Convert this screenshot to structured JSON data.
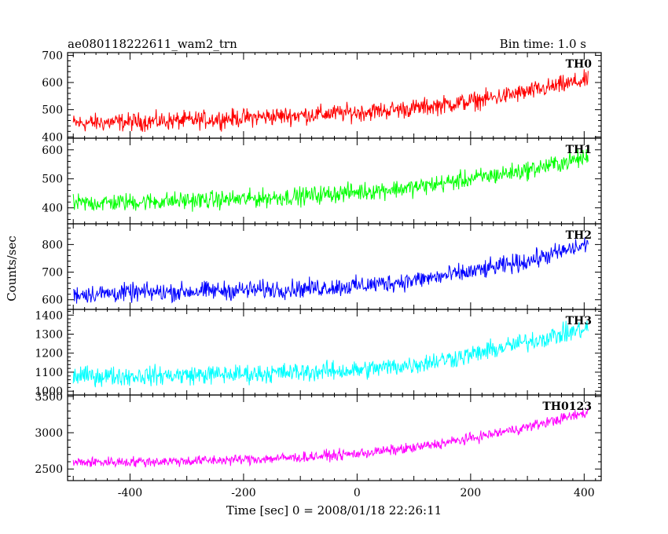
{
  "header": {
    "title": "ae080118222611_wam2_trn",
    "bin_time": "Bin time: 1.0 s"
  },
  "chart_data": {
    "type": "line",
    "xlabel": "Time [sec] 0 = 2008/01/18 22:26:11",
    "ylabel": "Counts/sec",
    "xlim": [
      -510,
      430
    ],
    "xticks": [
      -400,
      -200,
      0,
      200,
      400
    ],
    "x_range": [
      -500,
      407
    ],
    "panels": [
      {
        "name": "TH0",
        "color": "#ff0000",
        "ylim": [
          395,
          710
        ],
        "yticks": [
          400,
          500,
          600,
          700
        ],
        "trend_x": [
          -500,
          -400,
          -300,
          -200,
          -100,
          0,
          100,
          200,
          300,
          407
        ],
        "trend_y": [
          450,
          455,
          460,
          470,
          480,
          490,
          505,
          530,
          565,
          610
        ],
        "noise": 30
      },
      {
        "name": "TH1",
        "color": "#00ff00",
        "ylim": [
          345,
          640
        ],
        "yticks": [
          400,
          500,
          600
        ],
        "trend_x": [
          -500,
          -400,
          -300,
          -200,
          -100,
          0,
          100,
          200,
          300,
          407
        ],
        "trend_y": [
          415,
          420,
          425,
          430,
          440,
          455,
          470,
          500,
          530,
          575
        ],
        "noise": 28
      },
      {
        "name": "TH2",
        "color": "#0000ff",
        "ylim": [
          565,
          875
        ],
        "yticks": [
          600,
          700,
          800
        ],
        "trend_x": [
          -500,
          -400,
          -300,
          -200,
          -100,
          0,
          100,
          200,
          300,
          407
        ],
        "trend_y": [
          620,
          625,
          630,
          635,
          640,
          650,
          670,
          700,
          740,
          800
        ],
        "noise": 30
      },
      {
        "name": "TH3",
        "color": "#00ffff",
        "ylim": [
          980,
          1430
        ],
        "yticks": [
          1000,
          1100,
          1200,
          1300,
          1400
        ],
        "trend_x": [
          -500,
          -400,
          -300,
          -200,
          -100,
          0,
          100,
          200,
          300,
          407
        ],
        "trend_y": [
          1080,
          1080,
          1085,
          1090,
          1100,
          1110,
          1140,
          1190,
          1260,
          1330
        ],
        "noise": 45
      },
      {
        "name": "TH0123",
        "color": "#ff00ff",
        "ylim": [
          2340,
          3520
        ],
        "yticks": [
          2500,
          3000,
          3500
        ],
        "trend_x": [
          -500,
          -400,
          -300,
          -200,
          -100,
          0,
          100,
          200,
          300,
          407
        ],
        "trend_y": [
          2590,
          2600,
          2610,
          2630,
          2660,
          2710,
          2790,
          2920,
          3080,
          3280
        ],
        "noise": 65
      }
    ]
  }
}
